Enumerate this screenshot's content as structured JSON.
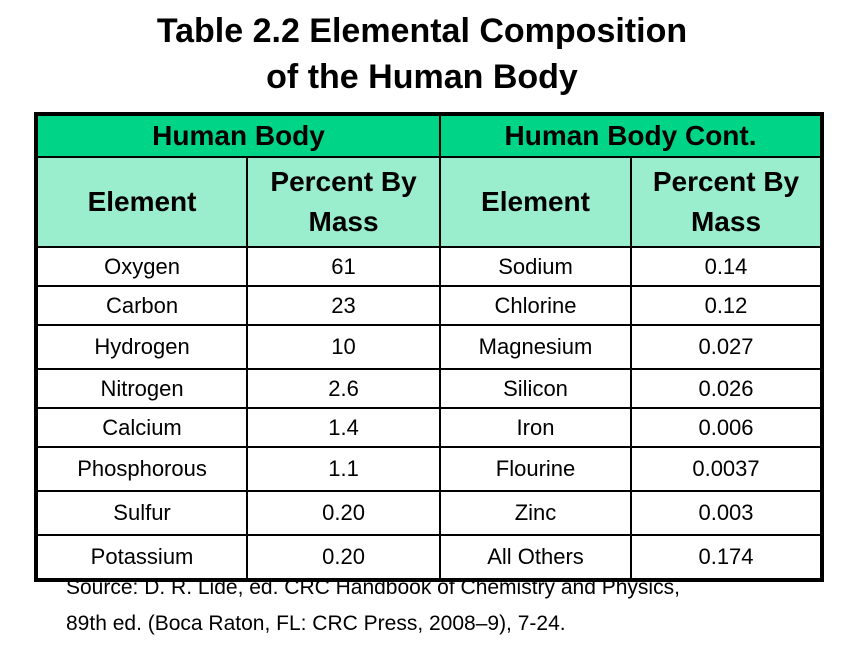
{
  "title": {
    "line1": "Table 2.2 Elemental Composition",
    "line2": "of the Human Body"
  },
  "table": {
    "groups": [
      "Human Body",
      "Human Body Cont."
    ],
    "columns": [
      "Element",
      "Percent By Mass",
      "Element",
      "Percent By Mass"
    ],
    "rows": [
      [
        "Oxygen",
        "61",
        "Sodium",
        "0.14"
      ],
      [
        "Carbon",
        "23",
        "Chlorine",
        "0.12"
      ],
      [
        "Hydrogen",
        "10",
        "Magnesium",
        "0.027"
      ],
      [
        "Nitrogen",
        "2.6",
        "Silicon",
        "0.026"
      ],
      [
        "Calcium",
        "1.4",
        "Iron",
        "0.006"
      ],
      [
        "Phosphorous",
        "1.1",
        "Flourine",
        "0.0037"
      ],
      [
        "Sulfur",
        "0.20",
        "Zinc",
        "0.003"
      ],
      [
        "Potassium",
        "0.20",
        "All Others",
        "0.174"
      ]
    ]
  },
  "source": {
    "line1": "Source: D. R. Lide, ed. CRC Handbook of Chemistry and Physics,",
    "line2": "89th ed. (Boca Raton, FL: CRC Press, 2008–9), 7-24."
  },
  "colors": {
    "group_header": "#00d486",
    "column_header": "#9beecd"
  }
}
